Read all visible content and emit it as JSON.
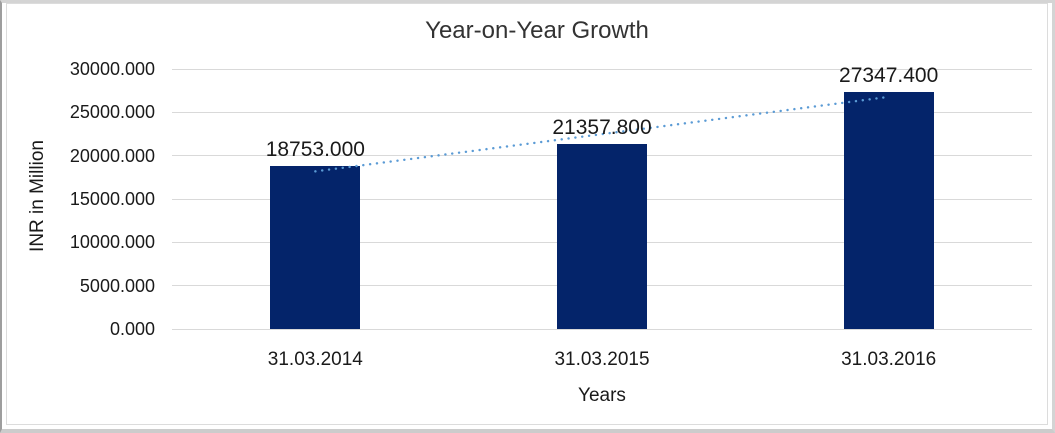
{
  "chart_data": {
    "type": "bar",
    "title": "Year-on-Year Growth",
    "categories": [
      "31.03.2014",
      "31.03.2015",
      "31.03.2016"
    ],
    "values": [
      18753.0,
      21357.8,
      27347.4
    ],
    "value_labels": [
      "18753.000",
      "21357.800",
      "27347.400"
    ],
    "xlabel": "Years",
    "ylabel": "INR in Million",
    "ylim": [
      0,
      30000
    ],
    "ytick_values": [
      0,
      5000,
      10000,
      15000,
      20000,
      25000,
      30000
    ],
    "ytick_labels": [
      "0.000",
      "5000.000",
      "10000.000",
      "15000.000",
      "20000.000",
      "25000.000",
      "30000.000"
    ],
    "grid": true,
    "legend": "none",
    "bar_color": "#04246a",
    "gridline_color": "#d9d9d9",
    "axis_text_color": "#1a1a1a",
    "title_color": "#333333",
    "trendline": {
      "type": "linear",
      "style": "dotted",
      "color": "#5b9bd5"
    }
  }
}
